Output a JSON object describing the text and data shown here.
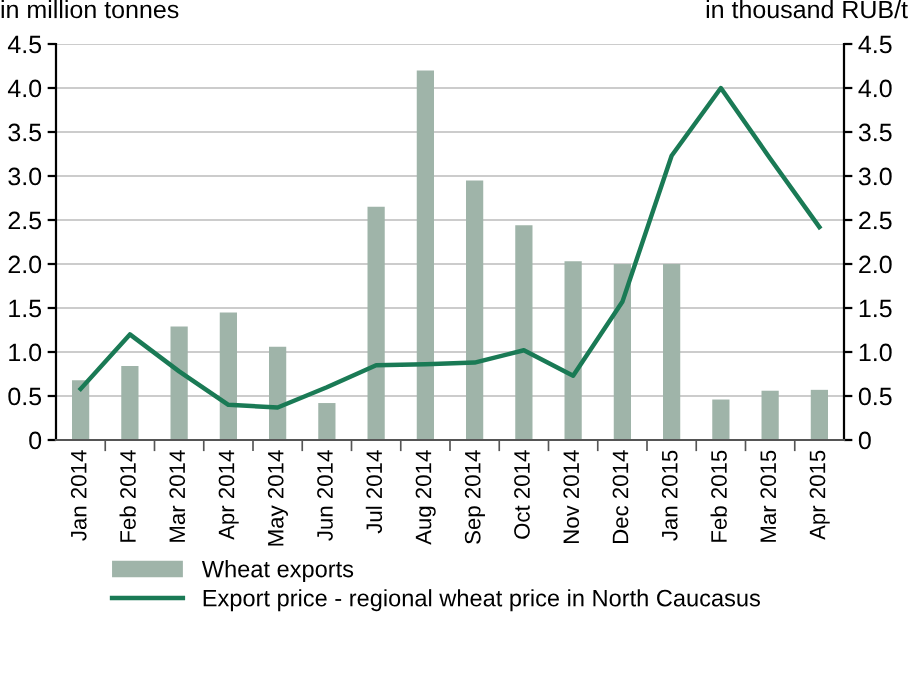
{
  "chart_data": {
    "type": "bar",
    "xlabel": null,
    "ylabel": "in million tonnes",
    "y2label": "in thousand RUB/t",
    "categories": [
      "Jan 2014",
      "Feb 2014",
      "Mar 2014",
      "Apr 2014",
      "May 2014",
      "Jun 2014",
      "Jul 2014",
      "Aug 2014",
      "Sep 2014",
      "Oct 2014",
      "Nov 2014",
      "Dec 2014",
      "Jan 2015",
      "Feb 2015",
      "Mar 2015",
      "Apr 2015"
    ],
    "series": [
      {
        "name": "Wheat exports",
        "color": "#9fb4a9",
        "values": [
          0.68,
          0.84,
          1.29,
          1.45,
          1.06,
          0.42,
          2.65,
          4.2,
          2.95,
          2.44,
          2.03,
          2.0,
          2.0,
          0.46,
          0.56,
          0.57
        ]
      },
      {
        "name": "Export price - regional wheat price in North Caucasus",
        "type": "line",
        "axis": "y2",
        "color": "#1a7a55",
        "values": [
          0.58,
          1.2,
          0.78,
          0.4,
          0.37,
          0.6,
          0.85,
          0.86,
          0.88,
          1.02,
          0.73,
          1.57,
          3.23,
          4.0,
          3.2,
          2.42
        ]
      }
    ],
    "ylim": [
      0,
      4.5
    ],
    "yticks": [
      0,
      0.5,
      {
        "value": 1,
        "label": "1.0"
      },
      1.5,
      {
        "value": 2,
        "label": "2.0"
      },
      2.5,
      {
        "value": 3,
        "label": "3.0"
      },
      3.5,
      {
        "value": 4,
        "label": "4.0"
      },
      4.5
    ],
    "y2lim": [
      0,
      4.5
    ],
    "y2ticks": [
      0,
      0.5,
      {
        "value": 1,
        "label": "1.0"
      },
      1.5,
      {
        "value": 2,
        "label": "2.0"
      },
      2.5,
      {
        "value": 3,
        "label": "3.0"
      },
      3.5,
      {
        "value": 4,
        "label": "4.0"
      },
      4.5
    ],
    "grid": "y",
    "legend": "bottom left",
    "marker": "none",
    "line_style": "solid"
  }
}
